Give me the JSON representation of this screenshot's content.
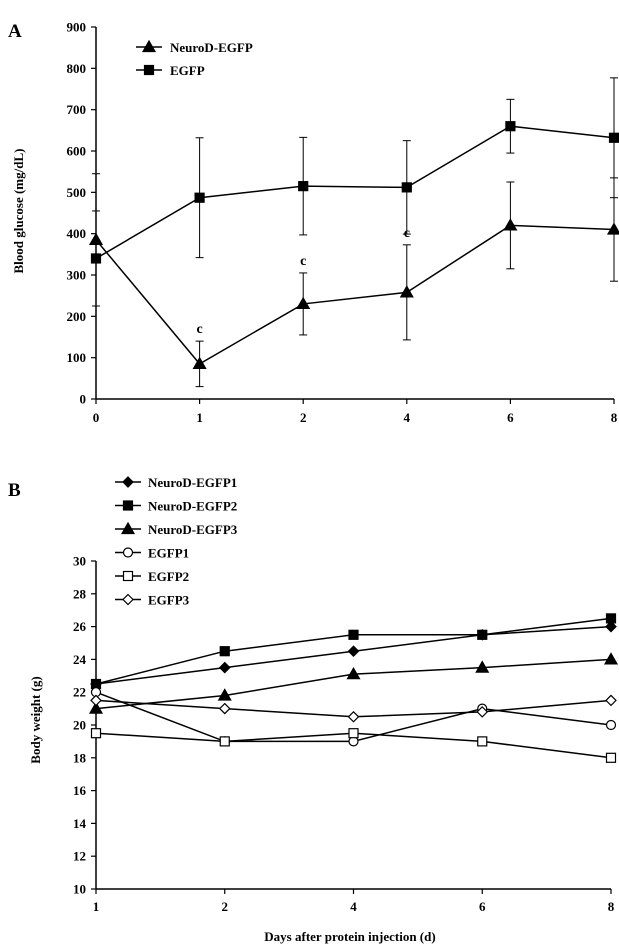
{
  "figure": {
    "panel_a_letter": "A",
    "panel_b_letter": "B",
    "shared_xlabel": "Days after protein injection (d)"
  },
  "chart_data": [
    {
      "type": "line",
      "panel": "A",
      "ylabel": "Blood glucose (mg/dL)",
      "xlabel": "",
      "categories": [
        "0",
        "1",
        "2",
        "4",
        "6",
        "8"
      ],
      "ylim": [
        0,
        900
      ],
      "yticks": [
        0,
        100,
        200,
        300,
        400,
        500,
        600,
        700,
        800,
        900
      ],
      "legend_position": "top-left",
      "series": [
        {
          "name": "NeuroD-EGFP",
          "marker": "triangle",
          "values": [
            385,
            85,
            230,
            258,
            420,
            410
          ],
          "errors": [
            160,
            55,
            75,
            115,
            105,
            125
          ]
        },
        {
          "name": "EGFP",
          "marker": "square",
          "values": [
            340,
            487,
            515,
            512,
            660,
            632
          ],
          "errors": [
            115,
            145,
            118,
            113,
            65,
            145
          ]
        }
      ],
      "annotations": [
        {
          "category": "1",
          "text": "c"
        },
        {
          "category": "2",
          "text": "c"
        },
        {
          "category": "4",
          "text": "c"
        }
      ]
    },
    {
      "type": "line",
      "panel": "B",
      "ylabel": "Body weight (g)",
      "xlabel": "Days after protein injection (d)",
      "categories": [
        "1",
        "2",
        "4",
        "6",
        "8"
      ],
      "ylim": [
        10,
        30
      ],
      "yticks": [
        10,
        12,
        14,
        16,
        18,
        20,
        22,
        24,
        26,
        28,
        30
      ],
      "legend_position": "top-left",
      "series": [
        {
          "name": "NeuroD-EGFP1",
          "marker": "diamond-filled",
          "values": [
            22.5,
            23.5,
            24.5,
            25.5,
            26.0
          ]
        },
        {
          "name": "NeuroD-EGFP2",
          "marker": "square-filled",
          "values": [
            22.5,
            24.5,
            25.5,
            25.5,
            26.5
          ]
        },
        {
          "name": "NeuroD-EGFP3",
          "marker": "triangle-filled",
          "values": [
            21.0,
            21.8,
            23.1,
            23.5,
            24.0
          ]
        },
        {
          "name": "EGFP1",
          "marker": "circle-open",
          "values": [
            22.0,
            19.0,
            19.0,
            21.0,
            20.0
          ]
        },
        {
          "name": "EGFP2",
          "marker": "square-open",
          "values": [
            19.5,
            19.0,
            19.5,
            19.0,
            18.0
          ]
        },
        {
          "name": "EGFP3",
          "marker": "diamond-open",
          "values": [
            21.5,
            21.0,
            20.5,
            20.8,
            21.5
          ]
        }
      ]
    }
  ]
}
